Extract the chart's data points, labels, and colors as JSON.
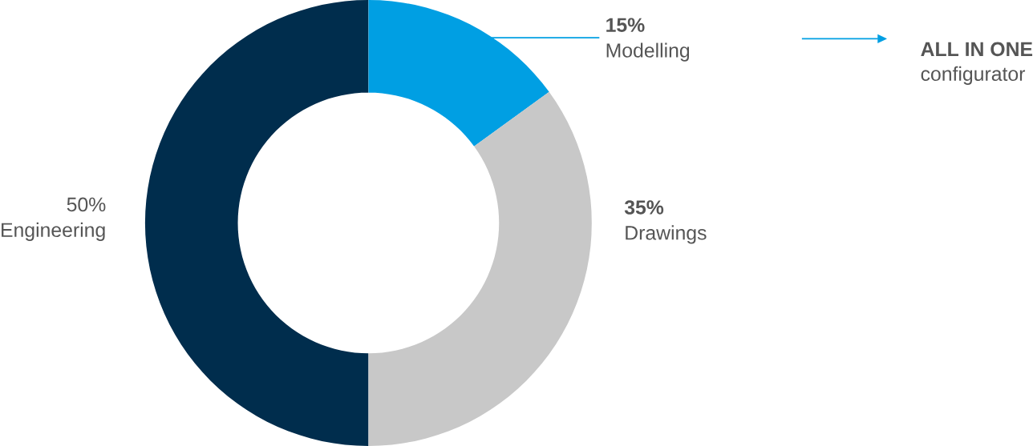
{
  "chart_data": {
    "type": "donut",
    "categories": [
      "Modelling",
      "Drawings",
      "Engineering"
    ],
    "values": [
      15,
      35,
      50
    ],
    "colors": [
      "#009fe3",
      "#c8c8c8",
      "#002d4d"
    ],
    "value_labels": [
      "15%",
      "35%",
      "50%"
    ],
    "annotations": [
      "ALL IN ONE",
      "configurator"
    ]
  }
}
